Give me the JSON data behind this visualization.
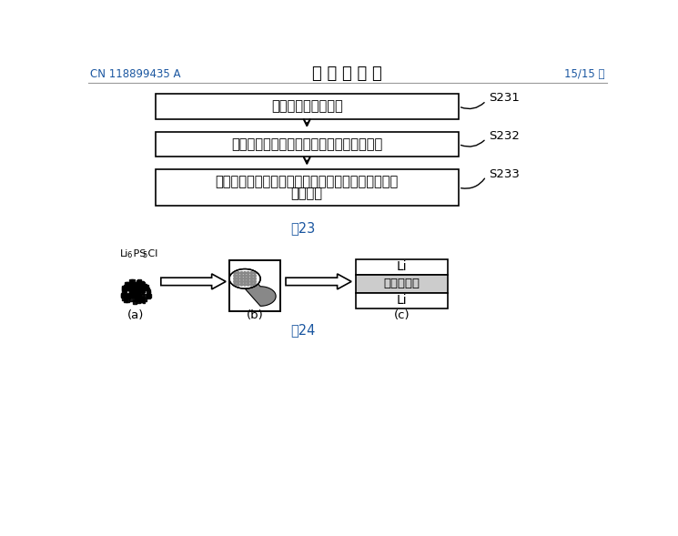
{
  "title": "说 明 书 附 图",
  "left_text": "CN 118899435 A",
  "right_text": "15/15 页",
  "box1_text": "形成掺杂硫化物材料",
  "box2_text": "利用掺杂硫化物材料形成硫化物固态电解质",
  "box3_line1": "组装金属锂负极、硫化物固态电解质和正极，得到锂",
  "box3_line2": "离子电池",
  "label1": "S231",
  "label2": "S232",
  "label3": "S233",
  "fig23_label": "图23",
  "fig24_label": "图24",
  "sub_a_label": "(a)",
  "sub_b_label": "(b)",
  "sub_c_label": "(c)",
  "powder_label_main": "Li",
  "powder_label_sub6": "6",
  "powder_label_ps": " PS",
  "powder_label_sub5": "5",
  "powder_label_cl": " Cl",
  "li_top": "Li",
  "electrolyte": "固态电解质",
  "li_bottom": "Li",
  "header_color": "#1a56a0",
  "text_color": "#000000",
  "background": "#ffffff",
  "fig_label_color": "#1a56a0"
}
